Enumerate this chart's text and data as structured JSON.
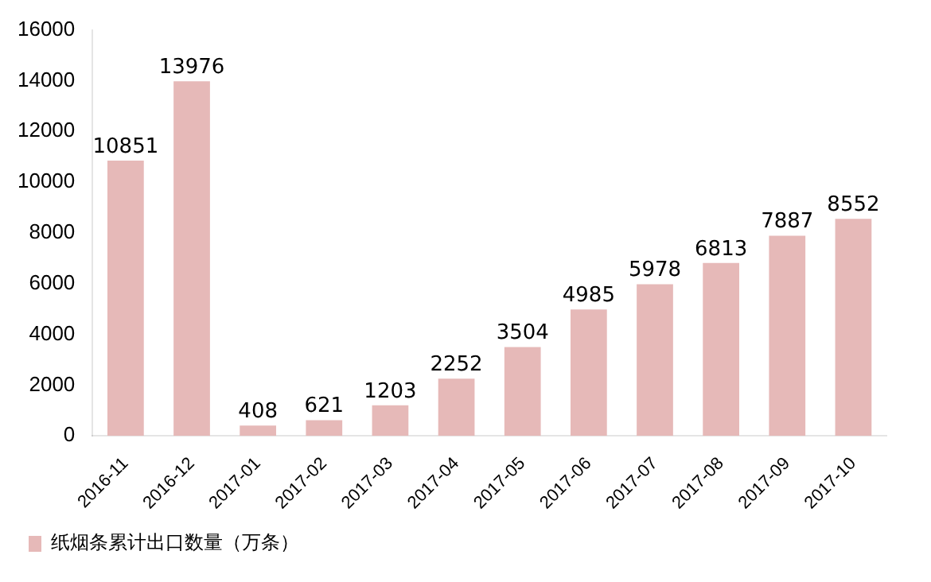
{
  "chart_data": {
    "type": "bar",
    "categories": [
      "2016-11",
      "2016-12",
      "2017-01",
      "2017-02",
      "2017-03",
      "2017-04",
      "2017-05",
      "2017-06",
      "2017-07",
      "2017-08",
      "2017-09",
      "2017-10"
    ],
    "series": [
      {
        "name": "纸烟条累计出口数量（万条）",
        "color": "#e6b9b8",
        "values": [
          10851,
          13976,
          408,
          621,
          1203,
          2252,
          3504,
          4985,
          5978,
          6813,
          7887,
          8552
        ]
      }
    ],
    "ylim": [
      0,
      16000
    ],
    "yticks": [
      0,
      2000,
      4000,
      6000,
      8000,
      10000,
      12000,
      14000,
      16000
    ],
    "grid": false,
    "legend": "bottom",
    "data_labels": true
  }
}
